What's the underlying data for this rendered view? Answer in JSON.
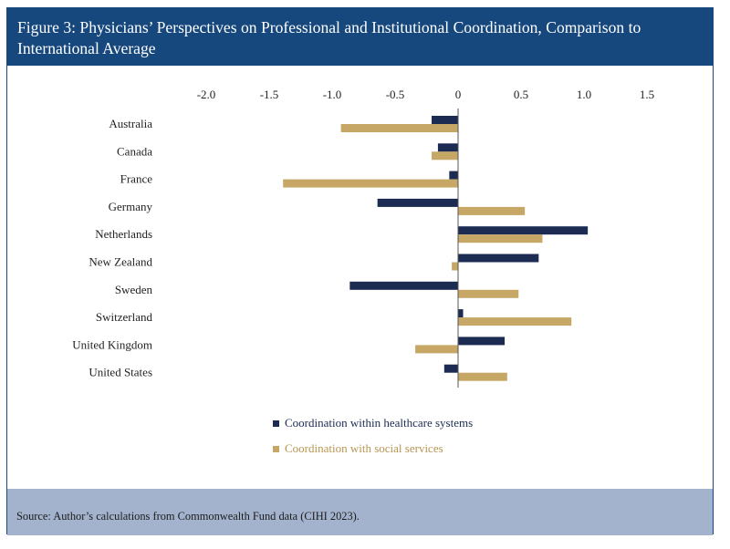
{
  "header": {
    "title": "Figure 3: Physicians’ Perspectives on Professional and Institutional Coordination, Comparison to International Average"
  },
  "footer": {
    "source": "Source: Author’s calculations from Commonwealth Fund data (CIHI 2023)."
  },
  "colors": {
    "header_bg": "#16477d",
    "footer_bg": "#a3b3cd",
    "series_healthcare": "#1b2b52",
    "series_social": "#c6a766"
  },
  "chart_data": {
    "type": "bar",
    "orientation": "horizontal",
    "title": "Figure 3: Physicians’ Perspectives on Professional and Institutional Coordination, Comparison to International Average",
    "categories": [
      "Australia",
      "Canada",
      "France",
      "Germany",
      "Netherlands",
      "New Zealand",
      "Sweden",
      "Switzerland",
      "United Kingdom",
      "United States"
    ],
    "series": [
      {
        "name": "Coordination within healthcare systems",
        "color": "#1b2b52",
        "values": [
          -0.21,
          -0.16,
          -0.07,
          -0.64,
          1.03,
          0.64,
          -0.86,
          0.04,
          0.37,
          -0.11
        ]
      },
      {
        "name": "Coordination with social services",
        "color": "#c6a766",
        "values": [
          -0.93,
          -0.21,
          -1.39,
          0.53,
          0.67,
          -0.05,
          0.48,
          0.9,
          -0.34,
          0.39
        ]
      }
    ],
    "xlim": [
      -2.0,
      1.5
    ],
    "xticks": [
      -2.0,
      -1.5,
      -1.0,
      -0.5,
      0,
      0.5,
      1.0,
      1.5
    ],
    "xtick_labels": [
      "-2.0",
      "-1.5",
      "-1.0",
      "-0.5",
      "0",
      "0.5",
      "1.0",
      "1.5"
    ],
    "xaxis_position": "top",
    "legend_position": "bottom-center",
    "grid": false,
    "xlabel": "",
    "ylabel": ""
  }
}
